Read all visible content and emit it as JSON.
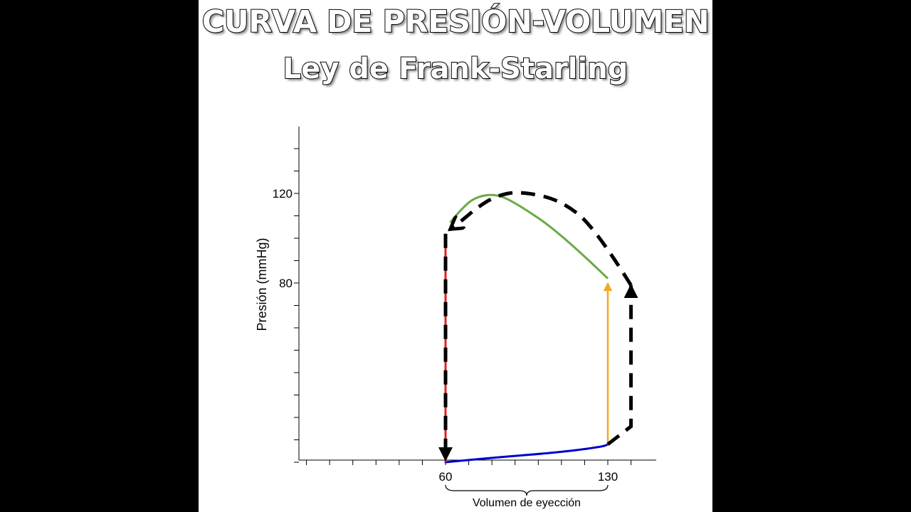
{
  "title_line1": "CURVA DE PRESIÓN-VOLUMEN",
  "title_line2": "Ley de Frank-Starling",
  "chart_data": {
    "type": "line",
    "ylabel": "Presión (mmHg)",
    "xlabel": "",
    "annotation": "Volumen de eyección",
    "x_ticks": [
      60,
      130
    ],
    "y_ticks": [
      80,
      120
    ],
    "xlim": [
      -3,
      150
    ],
    "ylim": [
      -8,
      140
    ],
    "series": [
      {
        "color": "#0000cc",
        "points": [
          [
            60,
            0
          ],
          [
            80,
            2
          ],
          [
            110,
            4.5
          ],
          [
            128,
            7
          ],
          [
            130,
            8
          ]
        ]
      },
      {
        "color": "#f5a623",
        "points": [
          [
            130,
            8
          ],
          [
            130,
            80
          ]
        ]
      },
      {
        "color": "#6aaa46",
        "points": [
          [
            130,
            82
          ],
          [
            110,
            102
          ],
          [
            90,
            116
          ],
          [
            81,
            120
          ],
          [
            72,
            118
          ],
          [
            66,
            112
          ],
          [
            62,
            107
          ]
        ]
      },
      {
        "color": "#e02020",
        "points": [
          [
            60,
            102
          ],
          [
            60,
            0
          ]
        ]
      },
      {
        "color": "#000000",
        "style": "dashed",
        "points": [
          [
            130,
            8
          ],
          [
            140,
            16
          ],
          [
            140,
            79
          ]
        ]
      },
      {
        "color": "#000000",
        "style": "dashed",
        "points": [
          [
            140,
            79
          ],
          [
            125,
            104
          ],
          [
            110,
            117
          ],
          [
            92,
            121
          ],
          [
            82,
            119
          ],
          [
            74,
            114
          ],
          [
            66,
            107
          ],
          [
            62,
            104
          ]
        ]
      },
      {
        "color": "#000000",
        "style": "dashed",
        "points": [
          [
            60,
            102
          ],
          [
            60,
            1
          ]
        ]
      }
    ],
    "grid": false,
    "legend": "none"
  }
}
